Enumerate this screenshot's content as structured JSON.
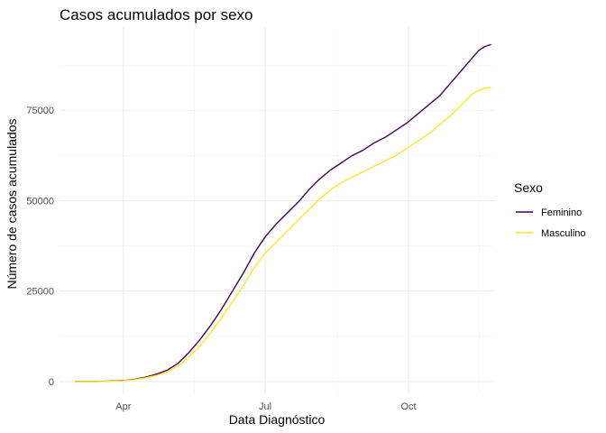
{
  "chart_data": {
    "type": "line",
    "title": "Casos acumulados por sexo",
    "xlabel": "Data Diagnóstico",
    "ylabel": "Número de casos acumulados",
    "x_ticks": [
      {
        "label": "Apr",
        "date": "2020-04-01"
      },
      {
        "label": "Jul",
        "date": "2020-07-01"
      },
      {
        "label": "Oct",
        "date": "2020-10-01"
      }
    ],
    "y_ticks": [
      0,
      25000,
      50000,
      75000
    ],
    "xlim": [
      "2020-02-20",
      "2020-11-25"
    ],
    "ylim": [
      -3500,
      98000
    ],
    "grid": true,
    "legend": {
      "title": "Sexo",
      "position": "right"
    },
    "series": [
      {
        "name": "Feminino",
        "color": "#440154",
        "points": [
          [
            "2020-03-01",
            0
          ],
          [
            "2020-03-15",
            0
          ],
          [
            "2020-03-25",
            150
          ],
          [
            "2020-04-01",
            300
          ],
          [
            "2020-04-08",
            600
          ],
          [
            "2020-04-15",
            1200
          ],
          [
            "2020-04-22",
            2000
          ],
          [
            "2020-04-29",
            3100
          ],
          [
            "2020-05-06",
            5000
          ],
          [
            "2020-05-13",
            8000
          ],
          [
            "2020-05-20",
            11500
          ],
          [
            "2020-05-27",
            15500
          ],
          [
            "2020-06-03",
            20000
          ],
          [
            "2020-06-10",
            25000
          ],
          [
            "2020-06-17",
            30000
          ],
          [
            "2020-06-24",
            35500
          ],
          [
            "2020-07-01",
            40000
          ],
          [
            "2020-07-08",
            43500
          ],
          [
            "2020-07-15",
            46500
          ],
          [
            "2020-07-22",
            49500
          ],
          [
            "2020-07-29",
            53000
          ],
          [
            "2020-08-05",
            56000
          ],
          [
            "2020-08-12",
            58500
          ],
          [
            "2020-08-19",
            60500
          ],
          [
            "2020-08-26",
            62500
          ],
          [
            "2020-09-02",
            64000
          ],
          [
            "2020-09-09",
            66000
          ],
          [
            "2020-09-16",
            67500
          ],
          [
            "2020-09-23",
            69500
          ],
          [
            "2020-09-30",
            71500
          ],
          [
            "2020-10-07",
            74000
          ],
          [
            "2020-10-14",
            76500
          ],
          [
            "2020-10-21",
            79000
          ],
          [
            "2020-10-28",
            82500
          ],
          [
            "2020-11-04",
            86000
          ],
          [
            "2020-11-11",
            89500
          ],
          [
            "2020-11-15",
            91500
          ],
          [
            "2020-11-19",
            92600
          ],
          [
            "2020-11-23",
            93200
          ]
        ]
      },
      {
        "name": "Masculino",
        "color": "#FDE725",
        "points": [
          [
            "2020-03-01",
            0
          ],
          [
            "2020-03-15",
            0
          ],
          [
            "2020-03-25",
            100
          ],
          [
            "2020-04-01",
            250
          ],
          [
            "2020-04-08",
            500
          ],
          [
            "2020-04-15",
            1000
          ],
          [
            "2020-04-22",
            1700
          ],
          [
            "2020-04-29",
            2600
          ],
          [
            "2020-05-06",
            4200
          ],
          [
            "2020-05-13",
            6700
          ],
          [
            "2020-05-20",
            9800
          ],
          [
            "2020-05-27",
            13500
          ],
          [
            "2020-06-03",
            17500
          ],
          [
            "2020-06-10",
            22000
          ],
          [
            "2020-06-17",
            26500
          ],
          [
            "2020-06-24",
            31500
          ],
          [
            "2020-07-01",
            35500
          ],
          [
            "2020-07-08",
            38500
          ],
          [
            "2020-07-15",
            41500
          ],
          [
            "2020-07-22",
            44500
          ],
          [
            "2020-07-29",
            47500
          ],
          [
            "2020-08-05",
            50500
          ],
          [
            "2020-08-12",
            53000
          ],
          [
            "2020-08-19",
            55000
          ],
          [
            "2020-08-26",
            56500
          ],
          [
            "2020-09-02",
            58000
          ],
          [
            "2020-09-09",
            59500
          ],
          [
            "2020-09-16",
            61000
          ],
          [
            "2020-09-23",
            62500
          ],
          [
            "2020-09-30",
            64500
          ],
          [
            "2020-10-07",
            66500
          ],
          [
            "2020-10-14",
            68500
          ],
          [
            "2020-10-21",
            71000
          ],
          [
            "2020-10-28",
            73500
          ],
          [
            "2020-11-04",
            76500
          ],
          [
            "2020-11-11",
            79500
          ],
          [
            "2020-11-15",
            80500
          ],
          [
            "2020-11-19",
            81100
          ],
          [
            "2020-11-23",
            81300
          ]
        ]
      }
    ]
  }
}
